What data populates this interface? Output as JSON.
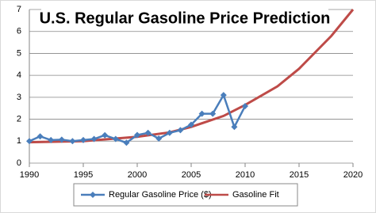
{
  "chart_data": {
    "type": "line",
    "title": "U.S. Regular Gasoline Price Prediction",
    "xlim": [
      1990,
      2020
    ],
    "xticks": [
      1990,
      1995,
      2000,
      2005,
      2010,
      2015,
      2020
    ],
    "ylim": [
      0,
      7
    ],
    "yticks": [
      0,
      1,
      2,
      3,
      4,
      5,
      6,
      7
    ],
    "grid": true,
    "legend": "bottom",
    "series": [
      {
        "name": "Regular Gasoline Price ($)",
        "color": "#4a7ebb",
        "marker": "diamond",
        "x": [
          1990,
          1991,
          1992,
          1993,
          1994,
          1995,
          1996,
          1997,
          1998,
          1999,
          2000,
          2001,
          2002,
          2003,
          2004,
          2005,
          2006,
          2007,
          2008,
          2009,
          2010
        ],
        "values": [
          1.0,
          1.22,
          1.05,
          1.07,
          1.0,
          1.05,
          1.1,
          1.27,
          1.1,
          0.93,
          1.28,
          1.38,
          1.12,
          1.38,
          1.5,
          1.75,
          2.25,
          2.25,
          3.1,
          1.65,
          2.6
        ]
      },
      {
        "name": "Gasoline Fit",
        "color": "#be4b48",
        "x": [
          1990,
          1995,
          2000,
          2003,
          2005,
          2008,
          2010,
          2013,
          2015,
          2018,
          2020
        ],
        "values": [
          0.95,
          1.0,
          1.2,
          1.4,
          1.65,
          2.15,
          2.65,
          3.5,
          4.3,
          5.8,
          7.0
        ]
      }
    ]
  }
}
